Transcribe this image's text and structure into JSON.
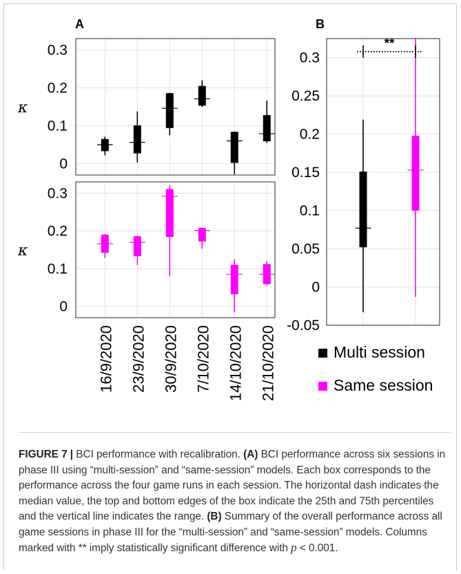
{
  "panels": {
    "A_label": "A",
    "B_label": "B"
  },
  "chart_data": [
    {
      "panel": "A (top)",
      "type": "box",
      "categories": [
        "16/9/2020",
        "23/9/2020",
        "30/9/2020",
        "7/10/2020",
        "14/10/2020",
        "21/10/2020"
      ],
      "ylabel": "κ",
      "ylim": [
        -0.03,
        0.33
      ],
      "yticks": [
        "0",
        "0.1",
        "0.2",
        "0.3"
      ],
      "series": [
        {
          "name": "Multi session",
          "color": "#000000",
          "boxes": [
            {
              "min": 0.022,
              "q1": 0.033,
              "median": 0.05,
              "q3": 0.065,
              "max": 0.071
            },
            {
              "min": 0.003,
              "q1": 0.027,
              "median": 0.056,
              "q3": 0.101,
              "max": 0.138
            },
            {
              "min": 0.075,
              "q1": 0.094,
              "median": 0.146,
              "q3": 0.186,
              "max": 0.187
            },
            {
              "min": 0.15,
              "q1": 0.153,
              "median": 0.171,
              "q3": 0.205,
              "max": 0.22
            },
            {
              "min": -0.028,
              "q1": 0.002,
              "median": 0.06,
              "q3": 0.084,
              "max": 0.085
            },
            {
              "min": 0.055,
              "q1": 0.059,
              "median": 0.079,
              "q3": 0.128,
              "max": 0.166
            }
          ]
        }
      ]
    },
    {
      "panel": "A (bottom)",
      "type": "box",
      "categories": [
        "16/9/2020",
        "23/9/2020",
        "30/9/2020",
        "7/10/2020",
        "14/10/2020",
        "21/10/2020"
      ],
      "ylabel": "κ",
      "ylim": [
        -0.03,
        0.33
      ],
      "yticks": [
        "0",
        "0.1",
        "0.2",
        "0.3"
      ],
      "series": [
        {
          "name": "Same session",
          "color": "#ff00ff",
          "boxes": [
            {
              "min": 0.128,
              "q1": 0.142,
              "median": 0.166,
              "q3": 0.19,
              "max": 0.192
            },
            {
              "min": 0.11,
              "q1": 0.133,
              "median": 0.17,
              "q3": 0.186,
              "max": 0.187
            },
            {
              "min": 0.08,
              "q1": 0.184,
              "median": 0.292,
              "q3": 0.311,
              "max": 0.322
            },
            {
              "min": 0.153,
              "q1": 0.172,
              "median": 0.201,
              "q3": 0.208,
              "max": 0.209
            },
            {
              "min": -0.016,
              "q1": 0.032,
              "median": 0.085,
              "q3": 0.11,
              "max": 0.125
            },
            {
              "min": 0.055,
              "q1": 0.059,
              "median": 0.085,
              "q3": 0.112,
              "max": 0.12
            }
          ]
        }
      ]
    },
    {
      "panel": "B",
      "type": "box",
      "ylim": [
        -0.05,
        0.325
      ],
      "yticks": [
        "0.3",
        "0.25",
        "0.2",
        "0.15",
        "0.1",
        "0.05",
        "0",
        "-0.05"
      ],
      "series": [
        {
          "name": "Multi session",
          "color": "#000000",
          "box": {
            "min": -0.033,
            "q1": 0.052,
            "median": 0.077,
            "q3": 0.151,
            "max": 0.219
          }
        },
        {
          "name": "Same session",
          "color": "#ff00ff",
          "box": {
            "min": -0.013,
            "q1": 0.1,
            "median": 0.153,
            "q3": 0.198,
            "max": 0.326
          }
        }
      ],
      "significance": {
        "label": "**",
        "y": 0.308
      }
    }
  ],
  "legend": {
    "items": [
      {
        "label": "Multi session",
        "color": "#000000"
      },
      {
        "label": "Same session",
        "color": "#ff00ff"
      }
    ]
  },
  "caption": {
    "label": "FIGURE 7 |",
    "title": " BCI performance with recalibration. ",
    "A_ref": "(A)",
    "A_text": " BCI performance across six sessions in phase III using “multi-session” and “same-session” models. Each box corresponds to the performance across the four game runs in each session. The horizontal dash indicates the median value, the top and bottom edges of the box indicate the 25th and 75th percentiles and the vertical line indicates the range. ",
    "B_ref": "(B)",
    "B_text": " Summary of the overall performance across all game sessions in phase III for the “multi-session” and “same-session” models. Columns marked with ** imply statistically significant difference with ",
    "p_sym": "p",
    "p_text": " < 0.001."
  }
}
